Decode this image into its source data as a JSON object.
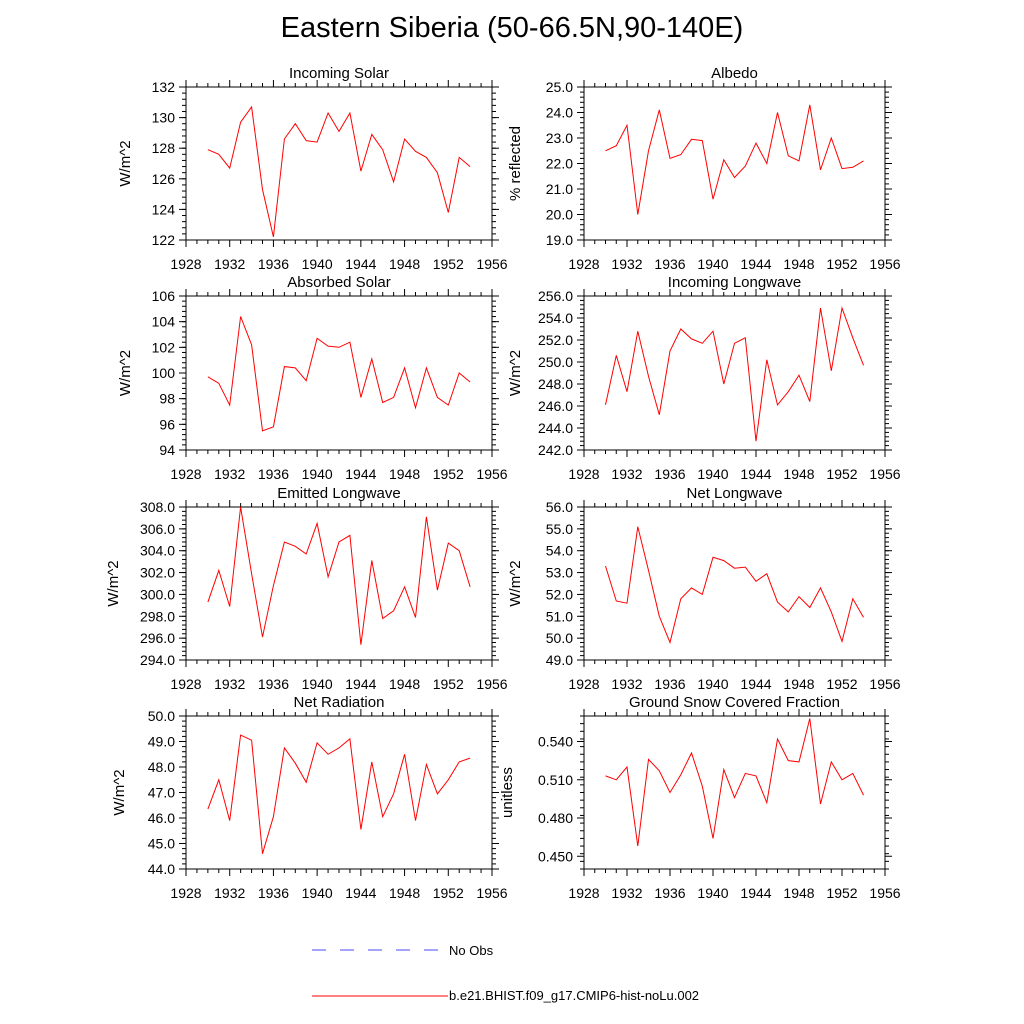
{
  "title": "Eastern Siberia (50-66.5N,90-140E)",
  "colors": {
    "model": "#ff0000",
    "obs": "#4a4aff",
    "axis": "#000000"
  },
  "legend": {
    "obs_label": "No Obs",
    "model_label": "b.e21.BHIST.f09_g17.CMIP6-hist-noLu.002"
  },
  "chart_data": [
    {
      "type": "line",
      "title": "Incoming Solar",
      "ylabel": "W/m^2",
      "xlim": [
        1928,
        1956
      ],
      "xticks": [
        1928,
        1932,
        1936,
        1940,
        1944,
        1948,
        1952,
        1956
      ],
      "ylim": [
        122,
        132
      ],
      "yticks": [
        122,
        124,
        126,
        128,
        130,
        132
      ],
      "ytick_labels": [
        "122",
        "124",
        "126",
        "128",
        "130",
        "132"
      ],
      "x": [
        1930,
        1931,
        1932,
        1933,
        1934,
        1935,
        1936,
        1937,
        1938,
        1939,
        1940,
        1941,
        1942,
        1943,
        1944,
        1945,
        1946,
        1947,
        1948,
        1949,
        1950,
        1951,
        1952,
        1953,
        1954
      ],
      "series": [
        {
          "name": "b.e21.BHIST.f09_g17.CMIP6-hist-noLu.002",
          "values": [
            127.9,
            127.6,
            126.7,
            129.7,
            130.7,
            125.3,
            122.2,
            128.6,
            129.6,
            128.5,
            128.4,
            130.3,
            129.1,
            130.3,
            126.5,
            128.9,
            127.9,
            125.8,
            128.6,
            127.8,
            127.4,
            126.4,
            123.8,
            127.4,
            126.8
          ]
        }
      ]
    },
    {
      "type": "line",
      "title": "Albedo",
      "ylabel": "% reflected",
      "xlim": [
        1928,
        1956
      ],
      "xticks": [
        1928,
        1932,
        1936,
        1940,
        1944,
        1948,
        1952,
        1956
      ],
      "ylim": [
        19,
        25
      ],
      "yticks": [
        19,
        20,
        21,
        22,
        23,
        24,
        25
      ],
      "ytick_labels": [
        "19.0",
        "20.0",
        "21.0",
        "22.0",
        "23.0",
        "24.0",
        "25.0"
      ],
      "x": [
        1930,
        1931,
        1932,
        1933,
        1934,
        1935,
        1936,
        1937,
        1938,
        1939,
        1940,
        1941,
        1942,
        1943,
        1944,
        1945,
        1946,
        1947,
        1948,
        1949,
        1950,
        1951,
        1952,
        1953,
        1954
      ],
      "series": [
        {
          "name": "b.e21.BHIST.f09_g17.CMIP6-hist-noLu.002",
          "values": [
            22.5,
            22.7,
            23.5,
            20.0,
            22.5,
            24.1,
            22.2,
            22.35,
            22.95,
            22.9,
            20.6,
            22.15,
            21.45,
            21.9,
            22.8,
            22.0,
            24.0,
            22.3,
            22.1,
            24.3,
            21.75,
            23.0,
            21.8,
            21.85,
            22.1
          ]
        }
      ]
    },
    {
      "type": "line",
      "title": "Absorbed Solar",
      "ylabel": "W/m^2",
      "xlim": [
        1928,
        1956
      ],
      "xticks": [
        1928,
        1932,
        1936,
        1940,
        1944,
        1948,
        1952,
        1956
      ],
      "ylim": [
        94,
        106
      ],
      "yticks": [
        94,
        96,
        98,
        100,
        102,
        104,
        106
      ],
      "ytick_labels": [
        "94",
        "96",
        "98",
        "100",
        "102",
        "104",
        "106"
      ],
      "x": [
        1930,
        1931,
        1932,
        1933,
        1934,
        1935,
        1936,
        1937,
        1938,
        1939,
        1940,
        1941,
        1942,
        1943,
        1944,
        1945,
        1946,
        1947,
        1948,
        1949,
        1950,
        1951,
        1952,
        1953,
        1954
      ],
      "series": [
        {
          "name": "b.e21.BHIST.f09_g17.CMIP6-hist-noLu.002",
          "values": [
            99.7,
            99.2,
            97.5,
            104.4,
            102.2,
            95.5,
            95.8,
            100.5,
            100.4,
            99.4,
            102.7,
            102.1,
            102.0,
            102.4,
            98.1,
            101.1,
            97.7,
            98.1,
            100.4,
            97.3,
            100.4,
            98.1,
            97.5,
            100.0,
            99.3
          ]
        }
      ]
    },
    {
      "type": "line",
      "title": "Incoming Longwave",
      "ylabel": "W/m^2",
      "xlim": [
        1928,
        1956
      ],
      "xticks": [
        1928,
        1932,
        1936,
        1940,
        1944,
        1948,
        1952,
        1956
      ],
      "ylim": [
        242,
        256
      ],
      "yticks": [
        242,
        244,
        246,
        248,
        250,
        252,
        254,
        256
      ],
      "ytick_labels": [
        "242.0",
        "244.0",
        "246.0",
        "248.0",
        "250.0",
        "252.0",
        "254.0",
        "256.0"
      ],
      "x": [
        1930,
        1931,
        1932,
        1933,
        1934,
        1935,
        1936,
        1937,
        1938,
        1939,
        1940,
        1941,
        1942,
        1943,
        1944,
        1945,
        1946,
        1947,
        1948,
        1949,
        1950,
        1951,
        1952,
        1953,
        1954
      ],
      "series": [
        {
          "name": "b.e21.BHIST.f09_g17.CMIP6-hist-noLu.002",
          "values": [
            246.1,
            250.6,
            247.3,
            252.8,
            248.7,
            245.2,
            251.0,
            253.0,
            252.1,
            251.7,
            252.8,
            248.0,
            251.7,
            252.2,
            242.8,
            250.2,
            246.1,
            247.3,
            248.8,
            246.4,
            254.9,
            249.2,
            254.9,
            252.2,
            249.7
          ]
        }
      ]
    },
    {
      "type": "line",
      "title": "Emitted Longwave",
      "ylabel": "W/m^2",
      "xlim": [
        1928,
        1956
      ],
      "xticks": [
        1928,
        1932,
        1936,
        1940,
        1944,
        1948,
        1952,
        1956
      ],
      "ylim": [
        294,
        308
      ],
      "yticks": [
        294,
        296,
        298,
        300,
        302,
        304,
        306,
        308
      ],
      "ytick_labels": [
        "294.0",
        "296.0",
        "298.0",
        "300.0",
        "302.0",
        "304.0",
        "306.0",
        "308.0"
      ],
      "x": [
        1930,
        1931,
        1932,
        1933,
        1934,
        1935,
        1936,
        1937,
        1938,
        1939,
        1940,
        1941,
        1942,
        1943,
        1944,
        1945,
        1946,
        1947,
        1948,
        1949,
        1950,
        1951,
        1952,
        1953,
        1954
      ],
      "series": [
        {
          "name": "b.e21.BHIST.f09_g17.CMIP6-hist-noLu.002",
          "values": [
            299.3,
            302.2,
            298.9,
            308.0,
            301.9,
            296.1,
            300.8,
            304.8,
            304.4,
            303.7,
            306.5,
            301.6,
            304.8,
            305.4,
            295.4,
            303.1,
            297.8,
            298.5,
            300.7,
            297.9,
            307.1,
            300.4,
            304.7,
            304.0,
            300.7
          ]
        }
      ]
    },
    {
      "type": "line",
      "title": "Net Longwave",
      "ylabel": "W/m^2",
      "xlim": [
        1928,
        1956
      ],
      "xticks": [
        1928,
        1932,
        1936,
        1940,
        1944,
        1948,
        1952,
        1956
      ],
      "ylim": [
        49,
        56
      ],
      "yticks": [
        49,
        50,
        51,
        52,
        53,
        54,
        55,
        56
      ],
      "ytick_labels": [
        "49.0",
        "50.0",
        "51.0",
        "52.0",
        "53.0",
        "54.0",
        "55.0",
        "56.0"
      ],
      "x": [
        1930,
        1931,
        1932,
        1933,
        1934,
        1935,
        1936,
        1937,
        1938,
        1939,
        1940,
        1941,
        1942,
        1943,
        1944,
        1945,
        1946,
        1947,
        1948,
        1949,
        1950,
        1951,
        1952,
        1953,
        1954
      ],
      "series": [
        {
          "name": "b.e21.BHIST.f09_g17.CMIP6-hist-noLu.002",
          "values": [
            53.3,
            51.7,
            51.6,
            55.1,
            53.1,
            51.0,
            49.8,
            51.8,
            52.3,
            52.0,
            53.7,
            53.55,
            53.2,
            53.25,
            52.6,
            52.95,
            51.65,
            51.2,
            51.9,
            51.4,
            52.3,
            51.2,
            49.85,
            51.8,
            50.95
          ]
        }
      ]
    },
    {
      "type": "line",
      "title": "Net Radiation",
      "ylabel": "W/m^2",
      "xlim": [
        1928,
        1956
      ],
      "xticks": [
        1928,
        1932,
        1936,
        1940,
        1944,
        1948,
        1952,
        1956
      ],
      "ylim": [
        44,
        50
      ],
      "yticks": [
        44,
        45,
        46,
        47,
        48,
        49,
        50
      ],
      "ytick_labels": [
        "44.0",
        "45.0",
        "46.0",
        "47.0",
        "48.0",
        "49.0",
        "50.0"
      ],
      "x": [
        1930,
        1931,
        1932,
        1933,
        1934,
        1935,
        1936,
        1937,
        1938,
        1939,
        1940,
        1941,
        1942,
        1943,
        1944,
        1945,
        1946,
        1947,
        1948,
        1949,
        1950,
        1951,
        1952,
        1953,
        1954
      ],
      "series": [
        {
          "name": "b.e21.BHIST.f09_g17.CMIP6-hist-noLu.002",
          "values": [
            46.35,
            47.5,
            45.9,
            49.25,
            49.05,
            44.6,
            46.05,
            48.75,
            48.15,
            47.4,
            48.95,
            48.5,
            48.75,
            49.1,
            45.55,
            48.2,
            46.05,
            46.95,
            48.5,
            45.9,
            48.1,
            46.95,
            47.5,
            48.2,
            48.35
          ]
        }
      ]
    },
    {
      "type": "line",
      "title": "Ground Snow Covered Fraction",
      "ylabel": "unitless",
      "xlim": [
        1928,
        1956
      ],
      "xticks": [
        1928,
        1932,
        1936,
        1940,
        1944,
        1948,
        1952,
        1956
      ],
      "ylim": [
        0.44,
        0.56
      ],
      "yticks": [
        0.45,
        0.48,
        0.51,
        0.54
      ],
      "ytick_labels": [
        "0.450",
        "0.480",
        "0.510",
        "0.540"
      ],
      "x": [
        1930,
        1931,
        1932,
        1933,
        1934,
        1935,
        1936,
        1937,
        1938,
        1939,
        1940,
        1941,
        1942,
        1943,
        1944,
        1945,
        1946,
        1947,
        1948,
        1949,
        1950,
        1951,
        1952,
        1953,
        1954
      ],
      "series": [
        {
          "name": "b.e21.BHIST.f09_g17.CMIP6-hist-noLu.002",
          "values": [
            0.513,
            0.51,
            0.52,
            0.458,
            0.526,
            0.517,
            0.5,
            0.514,
            0.531,
            0.505,
            0.464,
            0.518,
            0.496,
            0.515,
            0.513,
            0.492,
            0.542,
            0.525,
            0.524,
            0.558,
            0.491,
            0.524,
            0.51,
            0.515,
            0.498
          ]
        }
      ]
    }
  ]
}
